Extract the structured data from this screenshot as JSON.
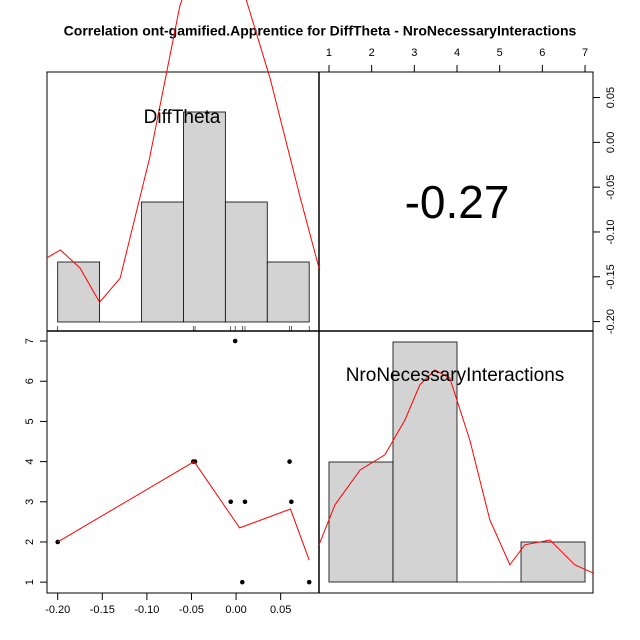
{
  "chart_data": {
    "type": "pairs",
    "title": "Correlation ont-gamified.Apprentice for DiffTheta - NroNecessaryInteractions",
    "variables": [
      "DiffTheta",
      "NroNecessaryInteractions"
    ],
    "correlation": -0.27,
    "axes": {
      "bottom": {
        "lim": [
          -0.212,
          0.093
        ],
        "ticks": [
          {
            "value": -0.2,
            "label": "-0.20"
          },
          {
            "value": -0.15,
            "label": "-0.15"
          },
          {
            "value": -0.1,
            "label": "-0.10"
          },
          {
            "value": -0.05,
            "label": "-0.05"
          },
          {
            "value": 0,
            "label": "0.00"
          },
          {
            "value": 0.05,
            "label": "0.05"
          }
        ]
      },
      "top": {
        "lim": [
          0.766,
          7.187
        ],
        "ticks": [
          1,
          2,
          3,
          4,
          5,
          6,
          7
        ]
      },
      "left": {
        "lim": [
          0.73,
          7.25
        ],
        "ticks": [
          1,
          2,
          3,
          4,
          5,
          6,
          7
        ]
      },
      "right": {
        "lim": [
          -0.2105,
          0.0785
        ],
        "ticks": [
          {
            "value": 0.05,
            "label": "0.05"
          },
          {
            "value": 0,
            "label": "0.00"
          },
          {
            "value": -0.05,
            "label": "-0.05"
          },
          {
            "value": -0.1,
            "label": "-0.10"
          },
          {
            "value": -0.15,
            "label": "-0.15"
          },
          {
            "value": -0.2,
            "label": "-0.20"
          }
        ]
      }
    },
    "histograms": [
      {
        "bins": [
          -0.2,
          -0.153,
          -0.106,
          -0.059,
          -0.012,
          0.035,
          0.082
        ],
        "values": [
          1,
          0,
          2,
          3.5,
          2,
          1
        ],
        "color": "#d3d3d3",
        "density": {
          "color": "#ff0000",
          "x": [
            -0.212,
            -0.197,
            -0.175,
            -0.153,
            -0.13,
            -0.097,
            -0.063,
            -0.04,
            -0.02,
            0.004,
            0.038,
            0.072,
            0.093
          ],
          "y": [
            1.07,
            1.2,
            0.9,
            0.33,
            0.73,
            2.73,
            5.27,
            6.23,
            6.4,
            5.73,
            4.07,
            2.07,
            0.9
          ]
        }
      },
      {
        "bins": [
          1,
          2.5,
          4,
          5.5,
          7
        ],
        "values": [
          3,
          6,
          0,
          1
        ],
        "color": "#d3d3d3",
        "density": {
          "color": "#ff0000",
          "x": [
            0.766,
            1.14,
            1.73,
            2.31,
            2.78,
            3.13,
            3.48,
            3.83,
            4.3,
            4.77,
            5.24,
            5.59,
            6.18,
            6.76,
            7.18
          ],
          "y": [
            0.93,
            1.93,
            2.8,
            3.18,
            4.05,
            4.93,
            5.3,
            5.1,
            3.55,
            1.55,
            0.43,
            0.93,
            1.05,
            0.43,
            0.23
          ]
        }
      }
    ],
    "scatter": {
      "color": "#000000",
      "x": [
        -0.2,
        -0.048,
        -0.046,
        -0.006,
        0.01,
        0.007,
        0.06,
        0.062,
        0.082,
        -0.001
      ],
      "y": [
        2,
        4,
        4,
        3,
        3,
        1,
        4,
        3,
        1,
        7
      ],
      "fit": {
        "color": "#ff0000",
        "x": [
          -0.2,
          -0.047,
          0.004,
          0.061,
          0.082
        ],
        "y": [
          2,
          4,
          2.35,
          2.82,
          1.55
        ]
      }
    }
  }
}
